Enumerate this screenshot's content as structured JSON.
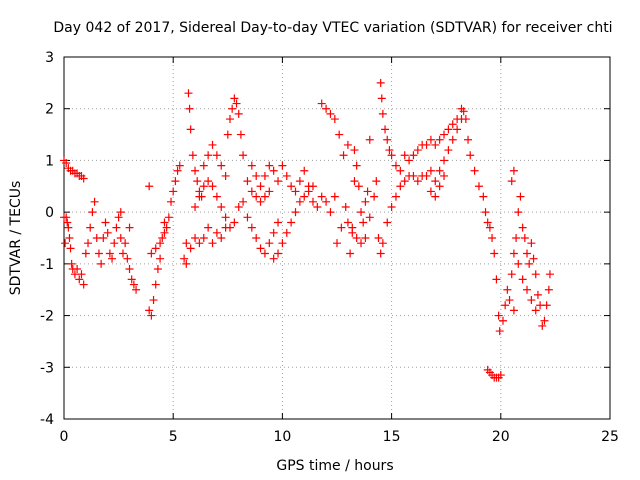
{
  "chart_data": {
    "type": "scatter",
    "title": "Day 042 of 2017, Sidereal Day-to-day VTEC variation (SDTVAR) for receiver chti",
    "xlabel": "GPS time / hours",
    "ylabel": "SDTVAR / TECUs",
    "xlim": [
      0,
      25
    ],
    "ylim": [
      -4,
      3
    ],
    "xticks": [
      0,
      5,
      10,
      15,
      20,
      25
    ],
    "yticks": [
      -4,
      -3,
      -2,
      -1,
      0,
      1,
      2,
      3
    ],
    "grid": true,
    "marker": "+",
    "marker_color": "#ff0000",
    "series": [
      {
        "name": "SDTVAR",
        "points": [
          [
            0.0,
            1.0
          ],
          [
            0.1,
            0.95
          ],
          [
            0.2,
            0.85
          ],
          [
            0.3,
            0.8
          ],
          [
            0.4,
            0.8
          ],
          [
            0.5,
            0.75
          ],
          [
            0.6,
            0.75
          ],
          [
            0.7,
            0.7
          ],
          [
            0.8,
            0.7
          ],
          [
            0.9,
            0.65
          ],
          [
            0.0,
            -0.1
          ],
          [
            0.05,
            -0.6
          ],
          [
            0.1,
            -0.1
          ],
          [
            0.15,
            -0.2
          ],
          [
            0.2,
            -0.3
          ],
          [
            0.25,
            -0.5
          ],
          [
            0.3,
            -0.7
          ],
          [
            0.35,
            -1.0
          ],
          [
            0.4,
            -1.1
          ],
          [
            0.5,
            -1.2
          ],
          [
            0.6,
            -1.1
          ],
          [
            0.7,
            -1.3
          ],
          [
            0.8,
            -1.2
          ],
          [
            0.9,
            -1.4
          ],
          [
            1.0,
            -0.8
          ],
          [
            1.1,
            -0.6
          ],
          [
            1.2,
            -0.3
          ],
          [
            1.3,
            0.0
          ],
          [
            1.4,
            0.2
          ],
          [
            1.5,
            -0.5
          ],
          [
            1.6,
            -0.8
          ],
          [
            1.7,
            -1.0
          ],
          [
            1.8,
            -0.5
          ],
          [
            1.9,
            -0.2
          ],
          [
            2.0,
            -0.4
          ],
          [
            2.1,
            -0.8
          ],
          [
            2.2,
            -0.9
          ],
          [
            2.3,
            -0.6
          ],
          [
            2.4,
            -0.3
          ],
          [
            2.5,
            -0.1
          ],
          [
            2.6,
            -0.5
          ],
          [
            2.7,
            -0.8
          ],
          [
            2.8,
            -0.6
          ],
          [
            2.9,
            -0.9
          ],
          [
            3.0,
            -1.1
          ],
          [
            3.1,
            -1.3
          ],
          [
            3.2,
            -1.4
          ],
          [
            3.3,
            -1.5
          ],
          [
            2.6,
            0.0
          ],
          [
            3.0,
            -0.3
          ],
          [
            3.9,
            0.5
          ],
          [
            3.9,
            -1.9
          ],
          [
            4.0,
            -2.0
          ],
          [
            4.1,
            -1.7
          ],
          [
            4.2,
            -1.4
          ],
          [
            4.3,
            -1.1
          ],
          [
            4.4,
            -0.9
          ],
          [
            4.5,
            -0.5
          ],
          [
            4.6,
            -0.4
          ],
          [
            4.7,
            -0.3
          ],
          [
            4.8,
            -0.1
          ],
          [
            4.9,
            0.2
          ],
          [
            5.0,
            0.4
          ],
          [
            5.1,
            0.6
          ],
          [
            5.2,
            0.8
          ],
          [
            5.3,
            0.9
          ],
          [
            4.0,
            -0.8
          ],
          [
            4.2,
            -0.7
          ],
          [
            4.4,
            -0.6
          ],
          [
            4.6,
            -0.2
          ],
          [
            5.5,
            -0.9
          ],
          [
            5.6,
            -0.6
          ],
          [
            5.7,
            2.3
          ],
          [
            5.75,
            2.0
          ],
          [
            5.8,
            1.6
          ],
          [
            5.9,
            1.1
          ],
          [
            6.0,
            0.8
          ],
          [
            6.1,
            0.6
          ],
          [
            6.2,
            0.4
          ],
          [
            6.3,
            0.3
          ],
          [
            5.6,
            -1.0
          ],
          [
            5.8,
            -0.7
          ],
          [
            6.0,
            -0.5
          ],
          [
            6.2,
            -0.6
          ],
          [
            6.4,
            -0.5
          ],
          [
            6.6,
            -0.3
          ],
          [
            6.8,
            -0.6
          ],
          [
            7.0,
            -0.4
          ],
          [
            7.2,
            -0.5
          ],
          [
            7.4,
            -0.3
          ],
          [
            6.0,
            0.1
          ],
          [
            6.2,
            0.3
          ],
          [
            6.4,
            0.5
          ],
          [
            6.6,
            0.6
          ],
          [
            6.8,
            0.5
          ],
          [
            7.0,
            0.3
          ],
          [
            7.2,
            0.1
          ],
          [
            7.4,
            -0.1
          ],
          [
            7.6,
            -0.3
          ],
          [
            7.8,
            -0.2
          ],
          [
            6.4,
            0.9
          ],
          [
            6.6,
            1.1
          ],
          [
            6.8,
            1.3
          ],
          [
            7.0,
            1.1
          ],
          [
            7.2,
            0.9
          ],
          [
            7.4,
            0.7
          ],
          [
            7.5,
            1.5
          ],
          [
            7.6,
            1.8
          ],
          [
            7.7,
            2.0
          ],
          [
            7.8,
            2.2
          ],
          [
            7.9,
            2.1
          ],
          [
            8.0,
            1.9
          ],
          [
            8.1,
            1.5
          ],
          [
            8.2,
            1.1
          ],
          [
            8.4,
            0.6
          ],
          [
            8.6,
            0.4
          ],
          [
            8.8,
            0.3
          ],
          [
            9.0,
            0.2
          ],
          [
            9.2,
            0.3
          ],
          [
            9.4,
            0.4
          ],
          [
            8.0,
            0.1
          ],
          [
            8.2,
            0.2
          ],
          [
            8.4,
            -0.1
          ],
          [
            8.6,
            -0.3
          ],
          [
            8.8,
            -0.5
          ],
          [
            9.0,
            -0.7
          ],
          [
            9.2,
            -0.8
          ],
          [
            9.4,
            -0.6
          ],
          [
            9.6,
            -0.4
          ],
          [
            9.8,
            -0.2
          ],
          [
            8.6,
            0.9
          ],
          [
            8.8,
            0.7
          ],
          [
            9.0,
            0.5
          ],
          [
            9.2,
            0.7
          ],
          [
            9.4,
            0.9
          ],
          [
            9.6,
            0.8
          ],
          [
            9.8,
            0.6
          ],
          [
            10.0,
            0.9
          ],
          [
            10.2,
            0.7
          ],
          [
            10.4,
            0.5
          ],
          [
            9.6,
            -0.9
          ],
          [
            9.8,
            -0.8
          ],
          [
            10.0,
            -0.6
          ],
          [
            10.2,
            -0.4
          ],
          [
            10.4,
            -0.2
          ],
          [
            10.6,
            0.0
          ],
          [
            10.8,
            0.2
          ],
          [
            11.0,
            0.3
          ],
          [
            11.2,
            0.4
          ],
          [
            11.4,
            0.5
          ],
          [
            10.6,
            0.4
          ],
          [
            10.8,
            0.6
          ],
          [
            11.0,
            0.8
          ],
          [
            11.2,
            0.5
          ],
          [
            11.4,
            0.2
          ],
          [
            11.6,
            0.1
          ],
          [
            11.8,
            0.3
          ],
          [
            12.0,
            0.2
          ],
          [
            12.2,
            0.0
          ],
          [
            12.4,
            0.3
          ],
          [
            11.8,
            2.1
          ],
          [
            12.0,
            2.0
          ],
          [
            12.2,
            1.9
          ],
          [
            12.4,
            1.8
          ],
          [
            12.6,
            1.5
          ],
          [
            12.8,
            1.1
          ],
          [
            13.0,
            1.3
          ],
          [
            12.5,
            -0.6
          ],
          [
            12.7,
            -0.3
          ],
          [
            12.9,
            0.1
          ],
          [
            13.1,
            -0.8
          ],
          [
            13.2,
            -0.4
          ],
          [
            13.3,
            0.6
          ],
          [
            13.4,
            0.9
          ],
          [
            13.5,
            0.5
          ],
          [
            13.6,
            0.0
          ],
          [
            13.7,
            -0.2
          ],
          [
            13.8,
            0.2
          ],
          [
            13.9,
            0.4
          ],
          [
            14.0,
            -0.1
          ],
          [
            13.0,
            -0.2
          ],
          [
            13.2,
            -0.3
          ],
          [
            13.4,
            -0.5
          ],
          [
            13.6,
            -0.6
          ],
          [
            13.8,
            -0.5
          ],
          [
            13.3,
            1.2
          ],
          [
            14.0,
            1.4
          ],
          [
            14.2,
            0.3
          ],
          [
            14.3,
            0.6
          ],
          [
            14.4,
            -0.5
          ],
          [
            14.5,
            2.5
          ],
          [
            14.55,
            2.2
          ],
          [
            14.6,
            1.9
          ],
          [
            14.7,
            1.6
          ],
          [
            14.8,
            1.4
          ],
          [
            14.9,
            1.2
          ],
          [
            15.0,
            1.1
          ],
          [
            15.2,
            0.9
          ],
          [
            15.4,
            0.8
          ],
          [
            14.5,
            -0.8
          ],
          [
            14.6,
            -0.6
          ],
          [
            14.8,
            -0.2
          ],
          [
            15.0,
            0.1
          ],
          [
            15.2,
            0.3
          ],
          [
            15.4,
            0.5
          ],
          [
            15.6,
            0.6
          ],
          [
            15.8,
            0.7
          ],
          [
            16.0,
            0.7
          ],
          [
            16.2,
            0.6
          ],
          [
            16.4,
            0.7
          ],
          [
            16.6,
            0.7
          ],
          [
            16.8,
            0.8
          ],
          [
            17.0,
            0.6
          ],
          [
            17.2,
            0.8
          ],
          [
            17.4,
            1.0
          ],
          [
            17.6,
            1.2
          ],
          [
            17.8,
            1.4
          ],
          [
            18.0,
            1.6
          ],
          [
            18.2,
            1.8
          ],
          [
            18.3,
            1.95
          ],
          [
            15.6,
            1.1
          ],
          [
            15.8,
            1.0
          ],
          [
            16.0,
            1.1
          ],
          [
            16.2,
            1.2
          ],
          [
            16.4,
            1.3
          ],
          [
            16.6,
            1.3
          ],
          [
            16.8,
            1.4
          ],
          [
            17.0,
            1.3
          ],
          [
            17.2,
            1.4
          ],
          [
            17.4,
            1.5
          ],
          [
            17.6,
            1.6
          ],
          [
            17.8,
            1.7
          ],
          [
            18.0,
            1.8
          ],
          [
            18.2,
            2.0
          ],
          [
            18.4,
            1.8
          ],
          [
            18.5,
            1.4
          ],
          [
            18.6,
            1.1
          ],
          [
            18.8,
            0.8
          ],
          [
            19.0,
            0.5
          ],
          [
            19.2,
            0.3
          ],
          [
            17.0,
            0.3
          ],
          [
            17.2,
            0.5
          ],
          [
            17.4,
            0.7
          ],
          [
            16.8,
            0.4
          ],
          [
            19.3,
            0.0
          ],
          [
            19.4,
            -0.2
          ],
          [
            19.5,
            -0.3
          ],
          [
            19.6,
            -0.5
          ],
          [
            19.7,
            -0.8
          ],
          [
            19.8,
            -1.3
          ],
          [
            19.9,
            -2.0
          ],
          [
            19.95,
            -2.3
          ],
          [
            19.5,
            -3.1
          ],
          [
            19.6,
            -3.15
          ],
          [
            19.7,
            -3.2
          ],
          [
            19.8,
            -3.2
          ],
          [
            19.9,
            -3.2
          ],
          [
            20.0,
            -3.15
          ],
          [
            19.4,
            -3.05
          ],
          [
            20.1,
            -2.1
          ],
          [
            20.2,
            -1.8
          ],
          [
            20.3,
            -1.5
          ],
          [
            20.4,
            -1.7
          ],
          [
            20.5,
            -1.2
          ],
          [
            20.6,
            -0.8
          ],
          [
            20.7,
            -0.5
          ],
          [
            20.8,
            0.0
          ],
          [
            20.9,
            0.3
          ],
          [
            20.5,
            0.6
          ],
          [
            20.6,
            0.8
          ],
          [
            21.0,
            -0.3
          ],
          [
            21.1,
            -0.5
          ],
          [
            21.2,
            -0.8
          ],
          [
            21.3,
            -1.0
          ],
          [
            21.4,
            -0.6
          ],
          [
            21.5,
            -0.9
          ],
          [
            21.6,
            -1.2
          ],
          [
            21.7,
            -1.6
          ],
          [
            21.8,
            -1.8
          ],
          [
            21.9,
            -2.2
          ],
          [
            22.0,
            -2.1
          ],
          [
            22.1,
            -1.8
          ],
          [
            22.2,
            -1.5
          ],
          [
            22.25,
            -1.2
          ],
          [
            21.0,
            -1.3
          ],
          [
            21.2,
            -1.5
          ],
          [
            21.4,
            -1.7
          ],
          [
            21.6,
            -1.9
          ],
          [
            20.8,
            -1.0
          ],
          [
            20.6,
            -1.9
          ]
        ]
      }
    ]
  }
}
